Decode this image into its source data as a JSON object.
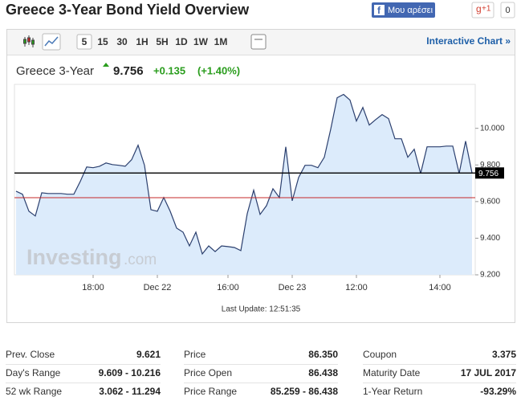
{
  "header": {
    "title": "Greece 3-Year Bond Yield Overview",
    "facebook": "Μου αρέσει",
    "gplus": "+1",
    "gplus_count": "0"
  },
  "toolbar": {
    "periods": [
      "5",
      "15",
      "30",
      "1H",
      "5H",
      "1D",
      "1W",
      "1M"
    ],
    "interactive": "Interactive Chart »"
  },
  "quote": {
    "name": "Greece 3-Year",
    "price": "9.756",
    "change": "+0.135",
    "change_pct": "(+1.40%)"
  },
  "chart_data": {
    "type": "area",
    "color": "#2b3f6e",
    "fill": "#dcebfb",
    "categories": [
      null,
      null,
      null,
      null,
      null,
      null,
      null,
      null,
      null,
      null,
      null,
      null,
      "18:00",
      null,
      null,
      null,
      null,
      null,
      null,
      null,
      null,
      null,
      "Dec 22",
      null,
      null,
      null,
      null,
      null,
      null,
      null,
      null,
      null,
      null,
      "16:00",
      null,
      null,
      null,
      null,
      null,
      null,
      null,
      null,
      null,
      "Dec 23",
      null,
      null,
      null,
      null,
      null,
      null,
      null,
      null,
      null,
      "12:00",
      null,
      null,
      null,
      null,
      null,
      null,
      null,
      null,
      null,
      null,
      null,
      null,
      "14:00",
      null,
      null,
      null,
      null,
      null
    ],
    "values": [
      9.657,
      9.64,
      9.547,
      9.521,
      9.648,
      9.644,
      9.644,
      9.644,
      9.64,
      9.64,
      9.71,
      9.789,
      9.785,
      9.793,
      9.811,
      9.802,
      9.798,
      9.793,
      9.829,
      9.908,
      9.798,
      9.556,
      9.547,
      9.622,
      9.547,
      9.455,
      9.433,
      9.358,
      9.433,
      9.314,
      9.358,
      9.327,
      9.358,
      9.354,
      9.349,
      9.332,
      9.534,
      9.662,
      9.53,
      9.578,
      9.67,
      9.622,
      9.899,
      9.604,
      9.732,
      9.798,
      9.798,
      9.785,
      9.842,
      9.996,
      10.167,
      10.185,
      10.154,
      10.04,
      10.114,
      10.018,
      10.048,
      10.075,
      10.053,
      9.943,
      9.943,
      9.842,
      9.886,
      9.754,
      9.899,
      9.899,
      9.899,
      9.903,
      9.903,
      9.754,
      9.93,
      9.756
    ],
    "ylim": [
      9.2,
      10.24
    ],
    "yticks": [
      {
        "value": 9.2,
        "label": "9.200"
      },
      {
        "value": 9.4,
        "label": "9.400"
      },
      {
        "value": 9.6,
        "label": "9.600"
      },
      {
        "value": 9.8,
        "label": "9.800"
      },
      {
        "value": 10,
        "label": "10.000"
      }
    ],
    "last_value": {
      "value": 9.756,
      "label": "9.756",
      "color": "#000000"
    },
    "prev_close": {
      "value": 9.621,
      "color": "#c62828"
    },
    "watermark": "Investing",
    "watermark_suffix": ".com",
    "last_update": "Last Update: 12:51:35"
  },
  "table": {
    "rows": [
      [
        "Prev. Close",
        "9.621",
        "Price",
        "86.350",
        "Coupon",
        "3.375"
      ],
      [
        "Day's Range",
        "9.609 - 10.216",
        "Price Open",
        "86.438",
        "Maturity Date",
        "17 JUL 2017"
      ],
      [
        "52 wk Range",
        "3.062 - 11.294",
        "Price Range",
        "85.259 - 86.438",
        "1-Year Return",
        "-93.29%"
      ]
    ]
  }
}
